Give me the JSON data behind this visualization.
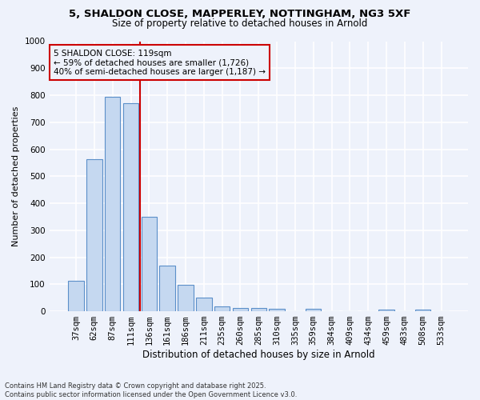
{
  "title_line1": "5, SHALDON CLOSE, MAPPERLEY, NOTTINGHAM, NG3 5XF",
  "title_line2": "Size of property relative to detached houses in Arnold",
  "xlabel": "Distribution of detached houses by size in Arnold",
  "ylabel": "Number of detached properties",
  "categories": [
    "37sqm",
    "62sqm",
    "87sqm",
    "111sqm",
    "136sqm",
    "161sqm",
    "186sqm",
    "211sqm",
    "235sqm",
    "260sqm",
    "285sqm",
    "310sqm",
    "335sqm",
    "359sqm",
    "384sqm",
    "409sqm",
    "434sqm",
    "459sqm",
    "483sqm",
    "508sqm",
    "533sqm"
  ],
  "values": [
    112,
    562,
    793,
    770,
    350,
    168,
    98,
    52,
    18,
    13,
    11,
    10,
    0,
    10,
    0,
    0,
    0,
    5,
    0,
    5,
    0
  ],
  "bar_color": "#c5d8f0",
  "bar_edge_color": "#5b8fc9",
  "vline_color": "#cc0000",
  "vline_x_index": 3.5,
  "annotation_title": "5 SHALDON CLOSE: 119sqm",
  "annotation_line1": "← 59% of detached houses are smaller (1,726)",
  "annotation_line2": "40% of semi-detached houses are larger (1,187) →",
  "annotation_box_color": "#cc0000",
  "ylim": [
    0,
    1000
  ],
  "yticks": [
    0,
    100,
    200,
    300,
    400,
    500,
    600,
    700,
    800,
    900,
    1000
  ],
  "footer_line1": "Contains HM Land Registry data © Crown copyright and database right 2025.",
  "footer_line2": "Contains public sector information licensed under the Open Government Licence v3.0.",
  "bg_color": "#eef2fb",
  "grid_color": "#ffffff",
  "title_fontsize": 9.5,
  "subtitle_fontsize": 8.5,
  "ylabel_fontsize": 8,
  "xlabel_fontsize": 8.5,
  "tick_fontsize": 7.5,
  "annot_fontsize": 7.5,
  "footer_fontsize": 6
}
